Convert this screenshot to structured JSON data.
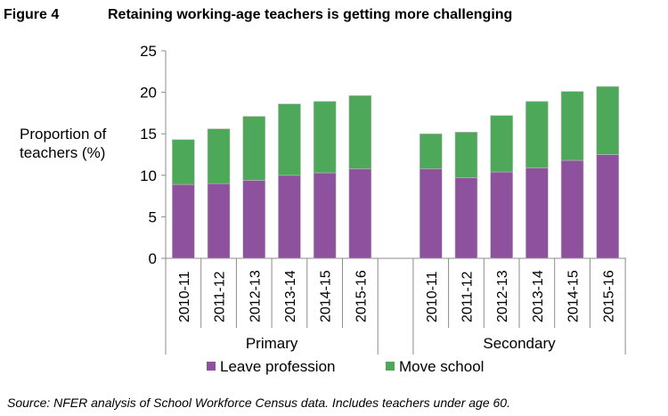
{
  "figure_label": "Figure 4",
  "title": "Retaining working-age teachers is getting more challenging",
  "ylabel_lines": [
    "Proportion of",
    "teachers (%)"
  ],
  "source": "Source: NFER analysis of School Workforce Census data. Includes teachers under age 60.",
  "colors": {
    "leave": "#8e519d",
    "move": "#4ea85a"
  },
  "chart_data": {
    "type": "bar",
    "stacked": true,
    "ylim": [
      0,
      25
    ],
    "yticks": [
      0,
      5,
      10,
      15,
      20,
      25
    ],
    "grid": false,
    "legend_position": "bottom",
    "groups": [
      {
        "name": "Primary",
        "categories": [
          "2010-11",
          "2011-12",
          "2012-13",
          "2013-14",
          "2014-15",
          "2015-16"
        ]
      },
      {
        "name": "Secondary",
        "categories": [
          "2010-11",
          "2011-12",
          "2012-13",
          "2013-14",
          "2014-15",
          "2015-16"
        ]
      }
    ],
    "series": [
      {
        "name": "Leave profession",
        "values": [
          [
            8.9,
            9.0,
            9.4,
            10.0,
            10.3,
            10.8
          ],
          [
            10.8,
            9.7,
            10.4,
            10.9,
            11.8,
            12.5
          ]
        ]
      },
      {
        "name": "Move school",
        "values": [
          [
            5.4,
            6.6,
            7.7,
            8.6,
            8.6,
            8.8
          ],
          [
            4.2,
            5.5,
            6.8,
            8.0,
            8.3,
            8.2
          ]
        ]
      }
    ]
  }
}
